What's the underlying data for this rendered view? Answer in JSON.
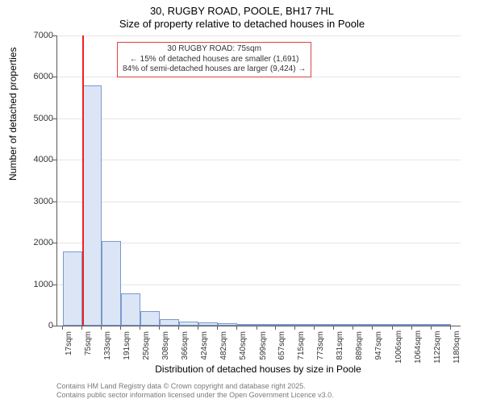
{
  "title": "30, RUGBY ROAD, POOLE, BH17 7HL",
  "subtitle": "Size of property relative to detached houses in Poole",
  "y_axis_label": "Number of detached properties",
  "x_axis_label": "Distribution of detached houses by size in Poole",
  "chart": {
    "type": "histogram",
    "ylim": [
      0,
      7000
    ],
    "ytick_step": 1000,
    "yticks": [
      0,
      1000,
      2000,
      3000,
      4000,
      5000,
      6000,
      7000
    ],
    "x_tick_labels": [
      "17sqm",
      "75sqm",
      "133sqm",
      "191sqm",
      "250sqm",
      "308sqm",
      "366sqm",
      "424sqm",
      "482sqm",
      "540sqm",
      "599sqm",
      "657sqm",
      "715sqm",
      "773sqm",
      "831sqm",
      "889sqm",
      "947sqm",
      "1006sqm",
      "1064sqm",
      "1122sqm",
      "1180sqm"
    ],
    "x_tick_positions": [
      17,
      75,
      133,
      191,
      250,
      308,
      366,
      424,
      482,
      540,
      599,
      657,
      715,
      773,
      831,
      889,
      947,
      1006,
      1064,
      1122,
      1180
    ],
    "x_range": [
      0,
      1210
    ],
    "bars": [
      {
        "x0": 17,
        "x1": 75,
        "value": 1780
      },
      {
        "x0": 75,
        "x1": 133,
        "value": 5800
      },
      {
        "x0": 133,
        "x1": 191,
        "value": 2050
      },
      {
        "x0": 191,
        "x1": 250,
        "value": 780
      },
      {
        "x0": 250,
        "x1": 308,
        "value": 350
      },
      {
        "x0": 308,
        "x1": 366,
        "value": 160
      },
      {
        "x0": 366,
        "x1": 424,
        "value": 100
      },
      {
        "x0": 424,
        "x1": 482,
        "value": 70
      },
      {
        "x0": 482,
        "x1": 540,
        "value": 50
      },
      {
        "x0": 540,
        "x1": 599,
        "value": 40
      },
      {
        "x0": 599,
        "x1": 657,
        "value": 30
      },
      {
        "x0": 657,
        "x1": 715,
        "value": 20
      },
      {
        "x0": 715,
        "x1": 773,
        "value": 15
      },
      {
        "x0": 773,
        "x1": 831,
        "value": 10
      },
      {
        "x0": 831,
        "x1": 889,
        "value": 8
      },
      {
        "x0": 889,
        "x1": 947,
        "value": 5
      },
      {
        "x0": 947,
        "x1": 1006,
        "value": 4
      },
      {
        "x0": 1006,
        "x1": 1064,
        "value": 3
      },
      {
        "x0": 1064,
        "x1": 1122,
        "value": 2
      },
      {
        "x0": 1122,
        "x1": 1180,
        "value": 1
      }
    ],
    "bar_fill": "#dbe5f6",
    "bar_stroke": "#7a99cc",
    "grid_color": "#e5e5e5",
    "axis_color": "#5b5b5b",
    "background_color": "#ffffff",
    "marker_x": 75,
    "marker_color": "#ee2222"
  },
  "annotation": {
    "line1": "30 RUGBY ROAD: 75sqm",
    "line2": "← 15% of detached houses are smaller (1,691)",
    "line3": "84% of semi-detached houses are larger (9,424) →",
    "border_color": "#d94444"
  },
  "footer_line1": "Contains HM Land Registry data © Crown copyright and database right 2025.",
  "footer_line2": "Contains public sector information licensed under the Open Government Licence v3.0."
}
